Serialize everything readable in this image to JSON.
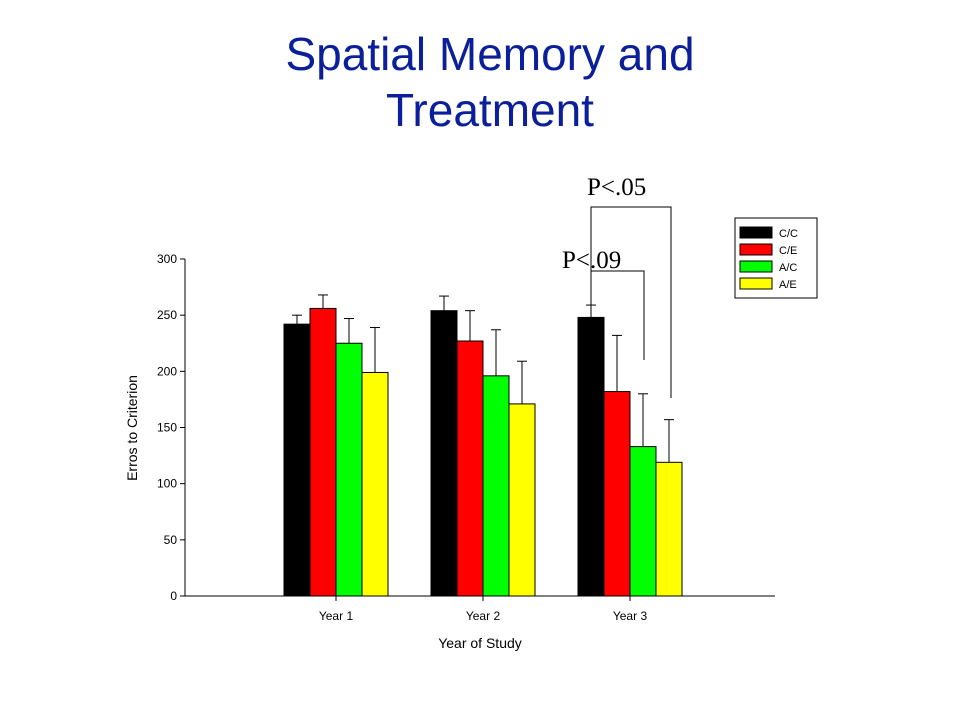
{
  "slide": {
    "title_line1": "Spatial Memory and",
    "title_line2": "Treatment"
  },
  "chart_data": {
    "type": "bar",
    "categories": [
      "Year 1",
      "Year 2",
      "Year 3"
    ],
    "series": [
      {
        "name": "C/C",
        "color": "#000000",
        "values": [
          242,
          254,
          248
        ],
        "errors": [
          8,
          13,
          11
        ]
      },
      {
        "name": "C/E",
        "color": "#ff0000",
        "values": [
          256,
          227,
          182
        ],
        "errors": [
          12,
          27,
          50
        ]
      },
      {
        "name": "A/C",
        "color": "#00ff00",
        "values": [
          225,
          196,
          133
        ],
        "errors": [
          22,
          41,
          47
        ]
      },
      {
        "name": "A/E",
        "color": "#ffff00",
        "values": [
          199,
          171,
          119
        ],
        "errors": [
          40,
          38,
          38
        ]
      }
    ],
    "xlabel": "Year of Study",
    "ylabel": "Erros to Criterion",
    "ylim": [
      0,
      300
    ],
    "yticks": [
      0,
      50,
      100,
      150,
      200,
      250,
      300
    ],
    "legend_position": "top-right",
    "grid": false,
    "annotations": [
      {
        "text": "P<.05",
        "from_series": "C/C",
        "to_series": "A/E",
        "category": "Year 3"
      },
      {
        "text": "P<.09",
        "from_series": "C/C",
        "to_series": "A/C",
        "category": "Year 3"
      }
    ]
  }
}
